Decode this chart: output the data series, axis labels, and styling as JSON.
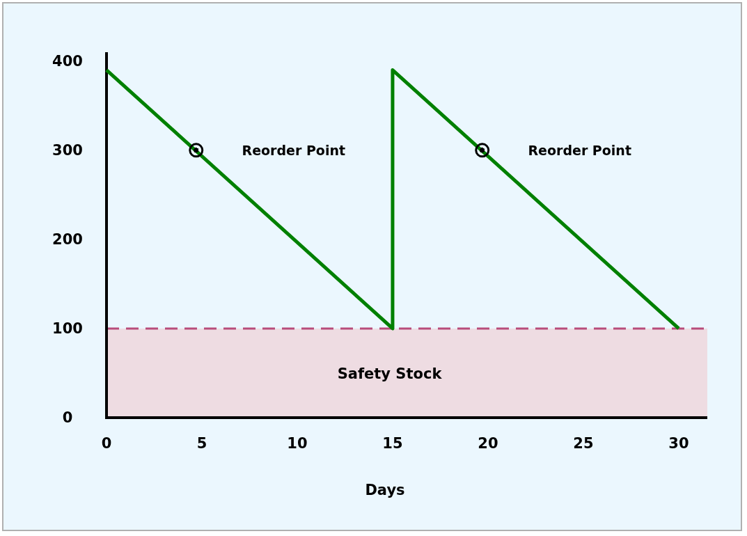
{
  "chart_data": {
    "type": "line",
    "xlabel": "Days",
    "xlim": [
      0,
      31.5
    ],
    "ylim": [
      0,
      410
    ],
    "xticks": [
      0,
      5,
      10,
      15,
      20,
      25,
      30
    ],
    "yticks": [
      0,
      100,
      200,
      300,
      400
    ],
    "series": [
      {
        "color": "#008000",
        "x": [
          0,
          15,
          15,
          30
        ],
        "values": [
          390,
          100,
          390,
          100
        ],
        "marker": "none",
        "line_style": "solid"
      },
      {
        "type": "scatter",
        "color": "#000000",
        "x": [
          4.7,
          19.7
        ],
        "values": [
          300,
          300
        ],
        "marker": "circle"
      }
    ],
    "annotations": [
      "Reorder Point",
      "Reorder Point"
    ],
    "bands": [
      {
        "axis": "y",
        "from": 0,
        "to": 100,
        "label": "Safety Stock",
        "color": "#ff4040"
      }
    ],
    "ref_lines": [
      {
        "axis": "y",
        "value": 100,
        "color": "#b84c7a",
        "line_style": "dashed"
      }
    ],
    "grid": false
  }
}
